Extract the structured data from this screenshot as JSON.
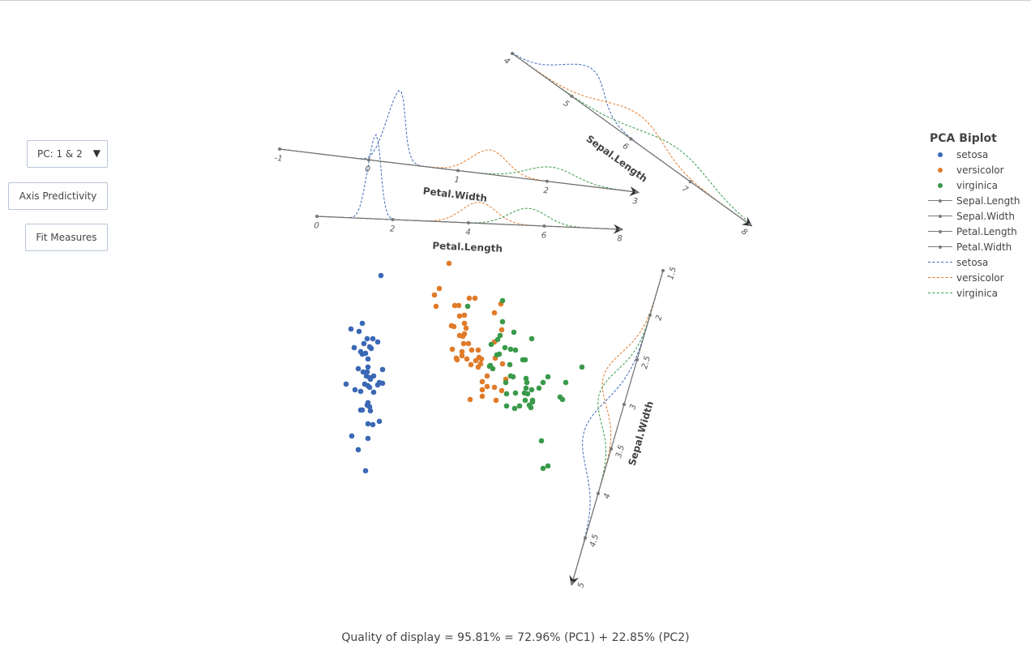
{
  "controls": {
    "pc_select": "PC: 1 & 2",
    "axis_predictivity": "Axis Predictivity",
    "fit_measures": "Fit Measures"
  },
  "legend": {
    "title": "PCA Biplot",
    "items": [
      {
        "label": "setosa",
        "kind": "point",
        "color": "#3a68b5"
      },
      {
        "label": "versicolor",
        "kind": "point",
        "color": "#e07b2a"
      },
      {
        "label": "virginica",
        "kind": "point",
        "color": "#3a9a4a"
      },
      {
        "label": "Sepal.Length",
        "kind": "axis",
        "color": "#7a7a7a"
      },
      {
        "label": "Sepal.Width",
        "kind": "axis",
        "color": "#7a7a7a"
      },
      {
        "label": "Petal.Length",
        "kind": "axis",
        "color": "#7a7a7a"
      },
      {
        "label": "Petal.Width",
        "kind": "axis",
        "color": "#7a7a7a"
      },
      {
        "label": "setosa",
        "kind": "density",
        "color": "#3a68b5"
      },
      {
        "label": "versicolor",
        "kind": "density",
        "color": "#e07b2a"
      },
      {
        "label": "virginica",
        "kind": "density",
        "color": "#3a9a4a"
      }
    ]
  },
  "quality": "Quality of display = 95.81% = 72.96% (PC1) + 22.85% (PC2)",
  "chart_data": {
    "type": "scatter",
    "title": "PCA Biplot",
    "grid": false,
    "legend_position": "right",
    "series": [
      {
        "name": "setosa",
        "color": "#3a68b5",
        "points": [
          [
            -2.2,
            2.42
          ],
          [
            -2.66,
            1.24
          ],
          [
            -2.94,
            1.1
          ],
          [
            -2.74,
            1.04
          ],
          [
            -2.54,
            0.86
          ],
          [
            -2.4,
            0.86
          ],
          [
            -2.28,
            0.78
          ],
          [
            -2.62,
            0.74
          ],
          [
            -2.86,
            0.64
          ],
          [
            -2.48,
            0.66
          ],
          [
            -2.44,
            0.62
          ],
          [
            -2.7,
            0.54
          ],
          [
            -2.58,
            0.5
          ],
          [
            -2.66,
            0.48
          ],
          [
            -2.52,
            0.36
          ],
          [
            -2.52,
            0.16
          ],
          [
            -2.76,
            0.12
          ],
          [
            -2.16,
            0.1
          ],
          [
            -2.64,
            0.04
          ],
          [
            -2.54,
            0.04
          ],
          [
            -2.56,
            -0.06
          ],
          [
            -2.48,
            -0.1
          ],
          [
            -2.46,
            -0.14
          ],
          [
            -2.38,
            -0.06
          ],
          [
            -3.06,
            -0.26
          ],
          [
            -2.6,
            -0.26
          ],
          [
            -2.52,
            -0.3
          ],
          [
            -2.48,
            -0.34
          ],
          [
            -2.28,
            -0.28
          ],
          [
            -2.24,
            -0.22
          ],
          [
            -2.16,
            -0.24
          ],
          [
            -2.84,
            -0.4
          ],
          [
            -2.7,
            -0.44
          ],
          [
            -2.38,
            -0.46
          ],
          [
            -2.52,
            -0.72
          ],
          [
            -2.54,
            -0.78
          ],
          [
            -2.48,
            -0.82
          ],
          [
            -2.46,
            -0.92
          ],
          [
            -2.7,
            -0.9
          ],
          [
            -2.66,
            -0.9
          ],
          [
            -2.24,
            -1.18
          ],
          [
            -2.52,
            -1.24
          ],
          [
            -2.4,
            -1.26
          ],
          [
            -2.92,
            -1.54
          ],
          [
            -2.52,
            -1.6
          ],
          [
            -2.76,
            -1.88
          ],
          [
            -2.58,
            -2.4
          ]
        ]
      },
      {
        "name": "versicolor",
        "color": "#e07b2a",
        "points": [
          [
            -0.52,
            2.72
          ],
          [
            -0.76,
            2.1
          ],
          [
            -0.88,
            1.94
          ],
          [
            -0.84,
            1.66
          ],
          [
            -0.02,
            1.86
          ],
          [
            0.12,
            1.86
          ],
          [
            -0.38,
            1.68
          ],
          [
            -0.28,
            1.68
          ],
          [
            0.76,
            1.72
          ],
          [
            0.6,
            1.5
          ],
          [
            -0.26,
            1.42
          ],
          [
            -0.14,
            1.44
          ],
          [
            -0.14,
            1.24
          ],
          [
            -0.46,
            1.18
          ],
          [
            -0.4,
            1.16
          ],
          [
            -0.1,
            1.12
          ],
          [
            0.78,
            1.08
          ],
          [
            -0.14,
            0.98
          ],
          [
            -0.26,
            0.94
          ],
          [
            -0.18,
            0.92
          ],
          [
            -0.16,
            0.74
          ],
          [
            -0.04,
            0.74
          ],
          [
            0.6,
            0.78
          ],
          [
            -0.44,
            0.6
          ],
          [
            -0.2,
            0.54
          ],
          [
            0.04,
            0.58
          ],
          [
            0.2,
            0.58
          ],
          [
            -0.2,
            0.44
          ],
          [
            -0.34,
            0.38
          ],
          [
            -0.32,
            0.34
          ],
          [
            -0.08,
            0.36
          ],
          [
            0.14,
            0.32
          ],
          [
            0.22,
            0.4
          ],
          [
            0.28,
            0.36
          ],
          [
            0.02,
            0.22
          ],
          [
            0.2,
            0.16
          ],
          [
            0.26,
            0.24
          ],
          [
            0.62,
            0.38
          ],
          [
            0.8,
            0.24
          ],
          [
            0.42,
            -0.06
          ],
          [
            0.3,
            -0.2
          ],
          [
            0.88,
            -0.14
          ],
          [
            0.42,
            -0.32
          ],
          [
            0.3,
            -0.4
          ],
          [
            0.6,
            -0.34
          ],
          [
            0.78,
            -0.42
          ],
          [
            0,
            -0.64
          ],
          [
            0.3,
            -0.56
          ],
          [
            0.64,
            -0.66
          ]
        ]
      },
      {
        "name": "virginica",
        "color": "#3a9a4a",
        "points": [
          [
            0.8,
            1.8
          ],
          [
            -0.06,
            1.66
          ],
          [
            0.8,
            1.28
          ],
          [
            1.08,
            1.02
          ],
          [
            0.74,
            0.94
          ],
          [
            0.68,
            0.84
          ],
          [
            1.52,
            0.86
          ],
          [
            0.52,
            0.72
          ],
          [
            0.86,
            0.64
          ],
          [
            1.0,
            0.6
          ],
          [
            1.12,
            0.58
          ],
          [
            0.66,
            0.46
          ],
          [
            0.72,
            0.48
          ],
          [
            1.3,
            0.34
          ],
          [
            1.36,
            0.34
          ],
          [
            2.76,
            0.16
          ],
          [
            0.98,
            0.22
          ],
          [
            0.48,
            0.18
          ],
          [
            0.5,
            0.2
          ],
          [
            0.56,
            0.12
          ],
          [
            1.0,
            -0.06
          ],
          [
            1.06,
            -0.08
          ],
          [
            1.38,
            -0.12
          ],
          [
            1.4,
            -0.22
          ],
          [
            1.92,
            -0.08
          ],
          [
            0.88,
            -0.22
          ],
          [
            1.8,
            -0.22
          ],
          [
            2.36,
            -0.22
          ],
          [
            1.38,
            -0.36
          ],
          [
            1.52,
            -0.4
          ],
          [
            1.7,
            -0.36
          ],
          [
            0.9,
            -0.5
          ],
          [
            1.12,
            -0.48
          ],
          [
            1.34,
            -0.48
          ],
          [
            1.42,
            -0.5
          ],
          [
            2.22,
            -0.58
          ],
          [
            2.28,
            -0.64
          ],
          [
            1.36,
            -0.66
          ],
          [
            1.54,
            -0.66
          ],
          [
            1.54,
            -0.7
          ],
          [
            0.9,
            -0.8
          ],
          [
            1.1,
            -0.86
          ],
          [
            1.22,
            -0.8
          ],
          [
            1.46,
            -0.78
          ],
          [
            1.5,
            -0.84
          ],
          [
            1.76,
            -1.66
          ],
          [
            1.92,
            -2.28
          ],
          [
            1.8,
            -2.34
          ]
        ]
      }
    ],
    "axes": [
      {
        "name": "Sepal.Length",
        "ticks": [
          "4",
          "5",
          "6",
          "7",
          "8"
        ],
        "domain": [
          4,
          8
        ]
      },
      {
        "name": "Sepal.Width",
        "ticks": [
          "1.5",
          "2",
          "2.5",
          "3",
          "3.5",
          "4",
          "4.5",
          "5"
        ],
        "domain": [
          1.5,
          5
        ]
      },
      {
        "name": "Petal.Length",
        "ticks": [
          "0",
          "2",
          "4",
          "6",
          "8"
        ],
        "domain": [
          0,
          8
        ]
      },
      {
        "name": "Petal.Width",
        "ticks": [
          "-1",
          "0",
          "1",
          "2",
          "3"
        ],
        "domain": [
          -1,
          3
        ]
      }
    ],
    "density_groups": [
      "setosa",
      "versicolor",
      "virginica"
    ]
  }
}
